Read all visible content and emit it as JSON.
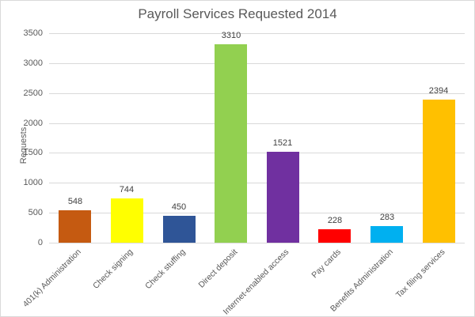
{
  "chart_data": {
    "type": "bar",
    "title": "Payroll Services Requested 2014",
    "xlabel": "",
    "ylabel": "Requests",
    "ylim": [
      0,
      3500
    ],
    "yticks": [
      0,
      500,
      1000,
      1500,
      2000,
      2500,
      3000,
      3500
    ],
    "grid": true,
    "legend": "none",
    "categories": [
      "401(k) Administration",
      "Check signing",
      "Check stuffing",
      "Direct deposit",
      "Internet-enabled access",
      "Pay cards",
      "Benefits Administration",
      "Tax filing services"
    ],
    "values": [
      548,
      744,
      450,
      3310,
      1521,
      228,
      283,
      2394
    ],
    "colors": [
      "#c55a11",
      "#ffff00",
      "#2f5597",
      "#92d050",
      "#7030a0",
      "#ff0000",
      "#00b0f0",
      "#ffc000"
    ],
    "data_labels": [
      "548",
      "744",
      "450",
      "3310",
      "1521",
      "228",
      "283",
      "2394"
    ]
  },
  "ytick_labels": [
    "0",
    "500",
    "1000",
    "1500",
    "2000",
    "2500",
    "3000",
    "3500"
  ]
}
